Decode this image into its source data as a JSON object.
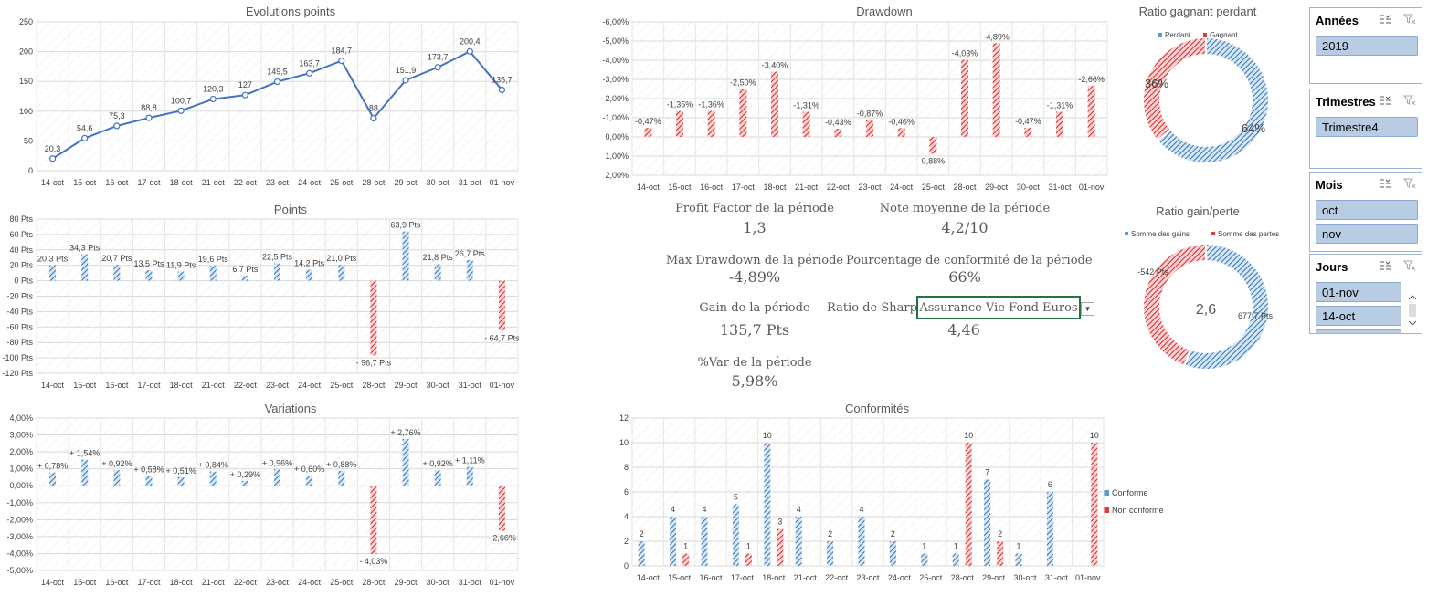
{
  "charts": {
    "evolution": {
      "title": "Evolutions points",
      "type": "line",
      "categories": [
        "14-oct",
        "15-oct",
        "16-oct",
        "17-oct",
        "18-oct",
        "21-oct",
        "22-oct",
        "23-oct",
        "24-oct",
        "25-oct",
        "28-oct",
        "29-oct",
        "30-oct",
        "31-oct",
        "01-nov"
      ],
      "values": [
        20.3,
        54.6,
        75.3,
        88.8,
        100.7,
        120.3,
        127,
        149.5,
        163.7,
        184.7,
        88,
        151.9,
        173.7,
        200.4,
        135.7
      ],
      "labels": [
        "20,3",
        "54,6",
        "75,3",
        "88,8",
        "100,7",
        "120,3",
        "127",
        "149,5",
        "163,7",
        "184,7",
        "88",
        "151,9",
        "173,7",
        "200,4",
        "135,7"
      ],
      "ylim": [
        0,
        250
      ],
      "yticks": [
        "0",
        "50",
        "100",
        "150",
        "200",
        "250"
      ]
    },
    "points": {
      "title": "Points",
      "type": "bar",
      "categories": [
        "14-oct",
        "15-oct",
        "16-oct",
        "17-oct",
        "18-oct",
        "21-oct",
        "22-oct",
        "23-oct",
        "24-oct",
        "25-oct",
        "28-oct",
        "29-oct",
        "30-oct",
        "31-oct",
        "01-nov"
      ],
      "values": [
        20.3,
        34.3,
        20.7,
        13.5,
        11.9,
        19.6,
        6.7,
        22.5,
        14.2,
        21.0,
        -96.7,
        63.9,
        21.8,
        26.7,
        -64.7
      ],
      "labels": [
        "20,3 Pts",
        "34,3 Pts",
        "20,7 Pts",
        "13,5 Pts",
        "11,9 Pts",
        "19,6 Pts",
        "6,7 Pts",
        "22,5 Pts",
        "14,2 Pts",
        "21,0 Pts",
        "- 96,7 Pts",
        "63,9 Pts",
        "21,8 Pts",
        "26,7 Pts",
        "- 64,7 Pts"
      ],
      "ylim": [
        -120,
        80
      ],
      "yticks": [
        "80 Pts",
        "60 Pts",
        "40 Pts",
        "20 Pts",
        "0 Pts",
        "-20 Pts",
        "-40 Pts",
        "-60 Pts",
        "-80 Pts",
        "-100 Pts",
        "-120 Pts"
      ]
    },
    "variations": {
      "title": "Variations",
      "type": "bar",
      "categories": [
        "14-oct",
        "15-oct",
        "16-oct",
        "17-oct",
        "18-oct",
        "21-oct",
        "22-oct",
        "23-oct",
        "24-oct",
        "25-oct",
        "28-oct",
        "29-oct",
        "30-oct",
        "31-oct",
        "01-nov"
      ],
      "values": [
        0.78,
        1.54,
        0.92,
        0.58,
        0.51,
        0.84,
        0.29,
        0.96,
        0.6,
        0.88,
        -4.03,
        2.76,
        0.92,
        1.11,
        -2.66
      ],
      "labels": [
        "+ 0,78%",
        "+ 1,54%",
        "+ 0,92%",
        "+ 0,58%",
        "+ 0,51%",
        "+ 0,84%",
        "+ 0,29%",
        "+ 0,96%",
        "+ 0,60%",
        "+ 0,88%",
        "- 4,03%",
        "+ 2,76%",
        "+ 0,92%",
        "+ 1,11%",
        "- 2,66%"
      ],
      "ylim": [
        -5,
        4
      ],
      "yticks": [
        "4,00%",
        "3,00%",
        "2,00%",
        "1,00%",
        "0,00%",
        "-1,00%",
        "-2,00%",
        "-3,00%",
        "-4,00%",
        "-5,00%"
      ]
    },
    "drawdown": {
      "title": "Drawdown",
      "type": "bar",
      "categories": [
        "14-oct",
        "15-oct",
        "16-oct",
        "17-oct",
        "18-oct",
        "21-oct",
        "22-oct",
        "23-oct",
        "24-oct",
        "25-oct",
        "28-oct",
        "29-oct",
        "30-oct",
        "31-oct",
        "01-nov"
      ],
      "values": [
        -0.47,
        -1.35,
        -1.36,
        -2.5,
        -3.4,
        -1.31,
        -0.43,
        -0.87,
        -0.46,
        0.88,
        -4.03,
        -4.89,
        -0.47,
        -1.31,
        -2.66
      ],
      "labels": [
        "-0,47%",
        "-1,35%",
        "-1,36%",
        "-2,50%",
        "-3,40%",
        "-1,31%",
        "-0,43%",
        "-0,87%",
        "-0,46%",
        "0,88%",
        "-4,03%",
        "-4,89%",
        "-0,47%",
        "-1,31%",
        "-2,66%"
      ],
      "ylim": [
        -6,
        2
      ],
      "yticks": [
        "-6,00%",
        "-5,00%",
        "-4,00%",
        "-3,00%",
        "-2,00%",
        "-1,00%",
        "0,00%",
        "1,00%",
        "2,00%"
      ]
    },
    "conformites": {
      "title": "Conformités",
      "type": "bar",
      "categories": [
        "14-oct",
        "15-oct",
        "16-oct",
        "17-oct",
        "18-oct",
        "21-oct",
        "22-oct",
        "23-oct",
        "24-oct",
        "25-oct",
        "28-oct",
        "29-oct",
        "30-oct",
        "31-oct",
        "01-nov"
      ],
      "series": [
        {
          "name": "Conforme",
          "values": [
            2,
            4,
            4,
            5,
            10,
            4,
            2,
            4,
            2,
            1,
            1,
            7,
            1,
            6,
            0
          ],
          "labels": [
            "2",
            "4",
            "4",
            "5",
            "10",
            "4",
            "2",
            "4",
            "2",
            "1",
            "1",
            "7",
            "1",
            "6",
            ""
          ]
        },
        {
          "name": "Non conforme",
          "values": [
            0,
            1,
            0,
            1,
            3,
            0,
            0,
            0,
            0,
            0,
            10,
            2,
            0,
            0,
            10
          ],
          "labels": [
            "",
            "1",
            "",
            "1",
            "3",
            "",
            "",
            "",
            "",
            "",
            "10",
            "2",
            "",
            "",
            "10"
          ]
        }
      ],
      "ylim": [
        0,
        12
      ],
      "yticks": [
        "0",
        "2",
        "4",
        "6",
        "8",
        "10",
        "12"
      ]
    },
    "ratio_gagnant": {
      "title": "Ratio gagnant perdant",
      "type": "pie",
      "legend": [
        "Perdant",
        "Gagnant"
      ],
      "values": [
        64,
        36
      ],
      "labels": [
        "64%",
        "36%"
      ]
    },
    "ratio_gain": {
      "title": "Ratio gain/perte",
      "type": "pie",
      "legend": [
        "Somme des gains",
        "Somme des pertes"
      ],
      "values": [
        677.7,
        542
      ],
      "labels": [
        "677,7 Pts",
        "-542 Pts"
      ],
      "center": "2,6"
    }
  },
  "metrics": {
    "profit_factor": {
      "label": "Profit Factor de la période",
      "value": "1,3"
    },
    "note_moyenne": {
      "label": "Note moyenne de la période",
      "value": "4,2/10"
    },
    "max_drawdown": {
      "label": "Max Drawdown de la période",
      "value": "-4,89%"
    },
    "conformite": {
      "label": "Pourcentage de conformité de la période",
      "value": "66%"
    },
    "gain": {
      "label": "Gain de la période",
      "value": "135,7 Pts"
    },
    "sharpe": {
      "label": "Ratio de Sharpe",
      "value": "4,46",
      "dropdown": "Assurance Vie Fond Euros"
    },
    "var": {
      "label": "%Var de la période",
      "value": "5,98%"
    }
  },
  "slicers": {
    "annees": {
      "title": "Années",
      "items": [
        "2019"
      ]
    },
    "trimestres": {
      "title": "Trimestres",
      "items": [
        "Trimestre4"
      ]
    },
    "mois": {
      "title": "Mois",
      "items": [
        "oct",
        "nov"
      ]
    },
    "jours": {
      "title": "Jours",
      "items": [
        "01-nov",
        "14-oct"
      ]
    }
  },
  "colors": {
    "blue": "#5b9bd5",
    "red": "#e0393e",
    "line": "#4472c4",
    "grid": "#d9d9d9",
    "text": "#404040"
  }
}
